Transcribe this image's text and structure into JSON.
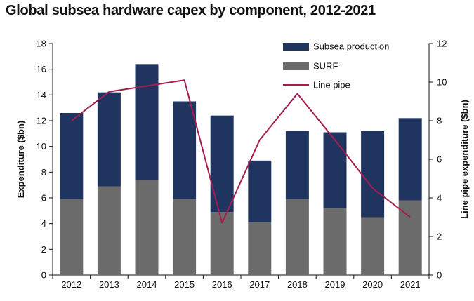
{
  "chart_data": {
    "type": "bar",
    "title": "Global subsea hardware capex by component, 2012-2021",
    "categories": [
      "2012",
      "2013",
      "2014",
      "2015",
      "2016",
      "2017",
      "2018",
      "2019",
      "2020",
      "2021"
    ],
    "ylabel": "Expenditure ($bn)",
    "y2label": "Line pipe expenditure ($bn)",
    "ylim": [
      0,
      18
    ],
    "y2lim": [
      0,
      12
    ],
    "yticks": [
      0,
      2,
      4,
      6,
      8,
      10,
      12,
      14,
      16,
      18
    ],
    "y2ticks": [
      0,
      2,
      4,
      6,
      8,
      10,
      12
    ],
    "stacked": true,
    "legend_position": "top-right",
    "grid": false,
    "series": [
      {
        "name": "Subsea production",
        "axis": "left",
        "kind": "bar",
        "color": "#1f3560",
        "values": [
          6.7,
          7.3,
          9.0,
          7.6,
          7.5,
          4.8,
          5.3,
          5.9,
          6.7,
          6.4
        ]
      },
      {
        "name": "SURF",
        "axis": "left",
        "kind": "bar",
        "color": "#6b6b6b",
        "values": [
          5.9,
          6.9,
          7.4,
          5.9,
          4.9,
          4.1,
          5.9,
          5.2,
          4.5,
          5.8
        ]
      },
      {
        "name": "Line pipe",
        "axis": "right",
        "kind": "line",
        "color": "#a51d4f",
        "values": [
          8.0,
          9.5,
          9.8,
          10.1,
          2.7,
          7.0,
          9.4,
          7.0,
          4.5,
          3.0
        ]
      }
    ]
  }
}
